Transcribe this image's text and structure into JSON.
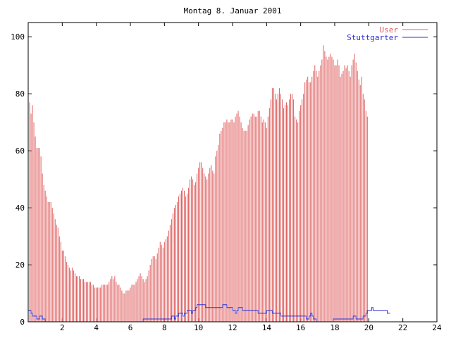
{
  "chart_data": {
    "type": "bar",
    "title": "Montag 8. Januar 2001",
    "xlabel": "",
    "ylabel": "",
    "xlim": [
      0,
      24
    ],
    "ylim": [
      0,
      105
    ],
    "x_ticks": [
      2,
      4,
      6,
      8,
      10,
      12,
      14,
      16,
      18,
      20,
      22,
      24
    ],
    "y_ticks": [
      0,
      20,
      40,
      60,
      80,
      100
    ],
    "legend_position": "top-right",
    "grid": false,
    "sample_interval_hours": 0.08333,
    "series": [
      {
        "name": "User",
        "style": "impulses",
        "color": "#e06060",
        "values": [
          75,
          77,
          73,
          76,
          70,
          65,
          61,
          61,
          61,
          58,
          52,
          48,
          46,
          44,
          42,
          42,
          42,
          40,
          38,
          36,
          34,
          33,
          30,
          28,
          25,
          25,
          23,
          21,
          20,
          19,
          18,
          19,
          18,
          17,
          16,
          16,
          16,
          15,
          15,
          15,
          14,
          14,
          14,
          14,
          14,
          13,
          13,
          12,
          12,
          12,
          12,
          12,
          13,
          13,
          13,
          13,
          13,
          14,
          15,
          16,
          15,
          16,
          14,
          13,
          13,
          12,
          11,
          10,
          10,
          11,
          11,
          11,
          12,
          13,
          13,
          13,
          14,
          15,
          16,
          17,
          16,
          15,
          14,
          15,
          16,
          18,
          20,
          22,
          23,
          23,
          22,
          24,
          26,
          28,
          27,
          26,
          28,
          29,
          30,
          32,
          34,
          36,
          38,
          40,
          41,
          42,
          44,
          45,
          46,
          47,
          46,
          44,
          45,
          47,
          50,
          51,
          50,
          48,
          49,
          52,
          54,
          56,
          56,
          54,
          52,
          51,
          50,
          52,
          54,
          55,
          53,
          52,
          58,
          60,
          62,
          66,
          67,
          68,
          70,
          70,
          71,
          70,
          70,
          71,
          71,
          70,
          72,
          73,
          74,
          72,
          70,
          68,
          67,
          67,
          67,
          69,
          71,
          72,
          73,
          73,
          72,
          72,
          74,
          74,
          72,
          70,
          71,
          70,
          68,
          72,
          75,
          78,
          82,
          82,
          80,
          78,
          80,
          82,
          80,
          78,
          75,
          76,
          77,
          76,
          78,
          80,
          80,
          78,
          72,
          71,
          70,
          74,
          76,
          78,
          80,
          84,
          85,
          86,
          84,
          84,
          86,
          88,
          90,
          88,
          86,
          88,
          90,
          92,
          97,
          95,
          93,
          92,
          93,
          94,
          93,
          92,
          90,
          90,
          92,
          90,
          86,
          87,
          88,
          90,
          89,
          90,
          88,
          86,
          90,
          92,
          94,
          91,
          88,
          85,
          83,
          86,
          80,
          78,
          74,
          72
        ]
      },
      {
        "name": "Stuttgarter",
        "style": "steps",
        "color": "#3030d0",
        "values": [
          4,
          4,
          3,
          2,
          2,
          2,
          1,
          1,
          2,
          2,
          1,
          1,
          0,
          0,
          0,
          0,
          0,
          0,
          0,
          0,
          0,
          0,
          0,
          0,
          0,
          0,
          0,
          0,
          0,
          0,
          0,
          0,
          0,
          0,
          0,
          0,
          0,
          0,
          0,
          0,
          0,
          0,
          0,
          0,
          0,
          0,
          0,
          0,
          0,
          0,
          0,
          0,
          0,
          0,
          0,
          0,
          0,
          0,
          0,
          0,
          0,
          0,
          0,
          0,
          0,
          0,
          0,
          0,
          0,
          0,
          0,
          0,
          0,
          0,
          0,
          0,
          0,
          0,
          0,
          0,
          0,
          1,
          1,
          1,
          1,
          1,
          1,
          1,
          1,
          1,
          1,
          1,
          1,
          1,
          1,
          1,
          1,
          1,
          1,
          1,
          1,
          2,
          2,
          1,
          2,
          2,
          3,
          3,
          3,
          2,
          3,
          3,
          4,
          4,
          4,
          3,
          4,
          4,
          5,
          6,
          6,
          6,
          6,
          6,
          6,
          5,
          5,
          5,
          5,
          5,
          5,
          5,
          5,
          5,
          5,
          5,
          5,
          6,
          6,
          6,
          5,
          5,
          5,
          5,
          4,
          4,
          3,
          4,
          5,
          5,
          5,
          4,
          4,
          4,
          4,
          4,
          4,
          4,
          4,
          4,
          4,
          4,
          3,
          3,
          3,
          3,
          3,
          3,
          4,
          4,
          4,
          4,
          3,
          3,
          3,
          3,
          3,
          3,
          2,
          2,
          2,
          2,
          2,
          2,
          2,
          2,
          2,
          2,
          2,
          2,
          2,
          2,
          2,
          2,
          2,
          2,
          1,
          1,
          2,
          3,
          2,
          1,
          1,
          0,
          0,
          0,
          0,
          0,
          0,
          0,
          0,
          0,
          0,
          0,
          0,
          1,
          1,
          1,
          1,
          1,
          1,
          1,
          1,
          1,
          1,
          1,
          1,
          1,
          1,
          2,
          2,
          1,
          1,
          1,
          1,
          1,
          2,
          2,
          3,
          4,
          4,
          4,
          5,
          4,
          4,
          4,
          4,
          4,
          4,
          4,
          4,
          4,
          4,
          3,
          3
        ]
      }
    ]
  }
}
